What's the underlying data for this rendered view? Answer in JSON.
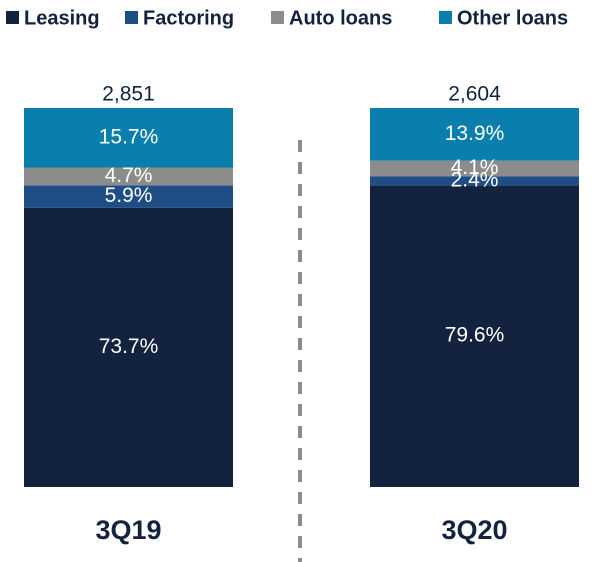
{
  "chart_data": {
    "type": "stacked_bar",
    "categories": [
      "3Q19",
      "3Q20"
    ],
    "totals": [
      {
        "value": 2851,
        "label": "2,851"
      },
      {
        "value": 2604,
        "label": "2,604"
      }
    ],
    "series": [
      {
        "name": "Leasing",
        "color": "#13233f",
        "values": [
          73.7,
          79.6
        ],
        "value_labels": [
          "73.7%",
          "79.6%"
        ]
      },
      {
        "name": "Factoring",
        "color": "#1f4e86",
        "values": [
          5.9,
          2.4
        ],
        "value_labels": [
          "5.9%",
          "2.4%"
        ]
      },
      {
        "name": "Auto loans",
        "color": "#8c8c8c",
        "values": [
          4.7,
          4.1
        ],
        "value_labels": [
          "4.7%",
          "4.1%"
        ]
      },
      {
        "name": "Other loans",
        "color": "#0a7ead",
        "values": [
          15.7,
          13.9
        ],
        "value_labels": [
          "15.7%",
          "13.9%"
        ]
      }
    ]
  }
}
